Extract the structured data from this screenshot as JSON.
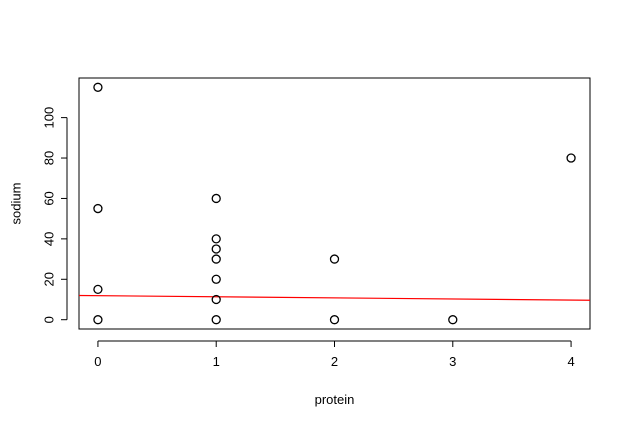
{
  "chart_data": {
    "type": "scatter",
    "title": "",
    "xlabel": "protein",
    "ylabel": "sodium",
    "xlim": [
      -0.16,
      4.16
    ],
    "ylim": [
      -4.6,
      119.6
    ],
    "xticks": [
      0,
      1,
      2,
      3,
      4
    ],
    "yticks": [
      0,
      20,
      40,
      60,
      80,
      100
    ],
    "xtick_labels": [
      "0",
      "1",
      "2",
      "3",
      "4"
    ],
    "ytick_labels": [
      "0",
      "20",
      "40",
      "60",
      "80",
      "100"
    ],
    "grid": false,
    "legend": "none",
    "points": [
      {
        "x": 0,
        "y": 115
      },
      {
        "x": 0,
        "y": 55
      },
      {
        "x": 0,
        "y": 15
      },
      {
        "x": 0,
        "y": 0
      },
      {
        "x": 1,
        "y": 60
      },
      {
        "x": 1,
        "y": 40
      },
      {
        "x": 1,
        "y": 35
      },
      {
        "x": 1,
        "y": 30
      },
      {
        "x": 1,
        "y": 20
      },
      {
        "x": 1,
        "y": 10
      },
      {
        "x": 1,
        "y": 0
      },
      {
        "x": 2,
        "y": 30
      },
      {
        "x": 2,
        "y": 0
      },
      {
        "x": 3,
        "y": 0
      },
      {
        "x": 4,
        "y": 80
      }
    ],
    "regression_line": {
      "intercept": 11.9,
      "slope": -0.55,
      "color": "#ff0000"
    },
    "point_color": "#000000"
  }
}
